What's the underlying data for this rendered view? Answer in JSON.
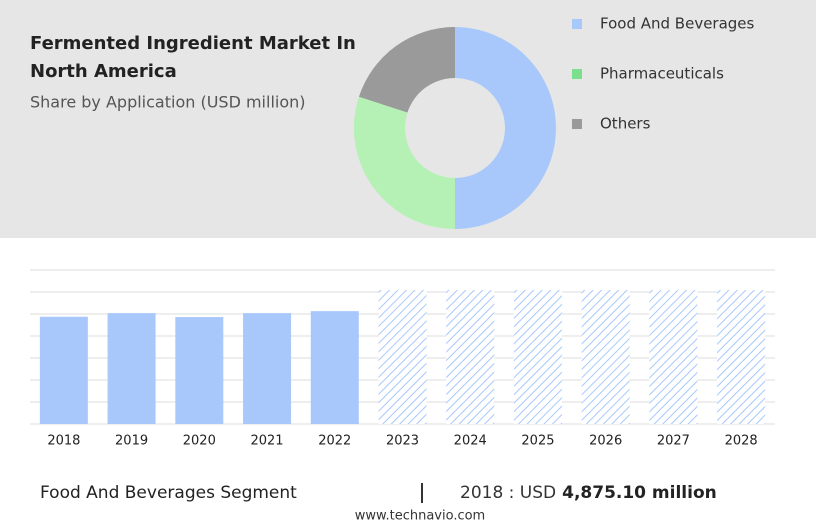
{
  "chart_data": [
    {
      "type": "pie",
      "title": [
        "Fermented Ingredient Market In",
        "North America"
      ],
      "subtitle": "Share by Application (USD million)",
      "categories": [
        "Food And Beverages",
        "Pharmaceuticals",
        "Others"
      ],
      "values": [
        50,
        30,
        20
      ],
      "colors": [
        "#a8c8fb",
        "#b5f1b5",
        "#9a9a9a"
      ],
      "legend_colors": [
        "#a8c8fb",
        "#7be08b",
        "#9a9a9a"
      ]
    },
    {
      "type": "bar",
      "categories": [
        "2018",
        "2019",
        "2020",
        "2021",
        "2022",
        "2023",
        "2024",
        "2025",
        "2026",
        "2027",
        "2028"
      ],
      "values": [
        4875.1,
        5040,
        4860,
        5040,
        5130,
        null,
        null,
        null,
        null,
        null,
        null
      ],
      "color": "#a8c8fb",
      "ylim": [
        0,
        7000
      ]
    }
  ],
  "footer": {
    "segment": "Food And Beverages Segment",
    "year_label": "2018 : USD",
    "value": "4,875.10 million",
    "website": "www.technavio.com"
  }
}
